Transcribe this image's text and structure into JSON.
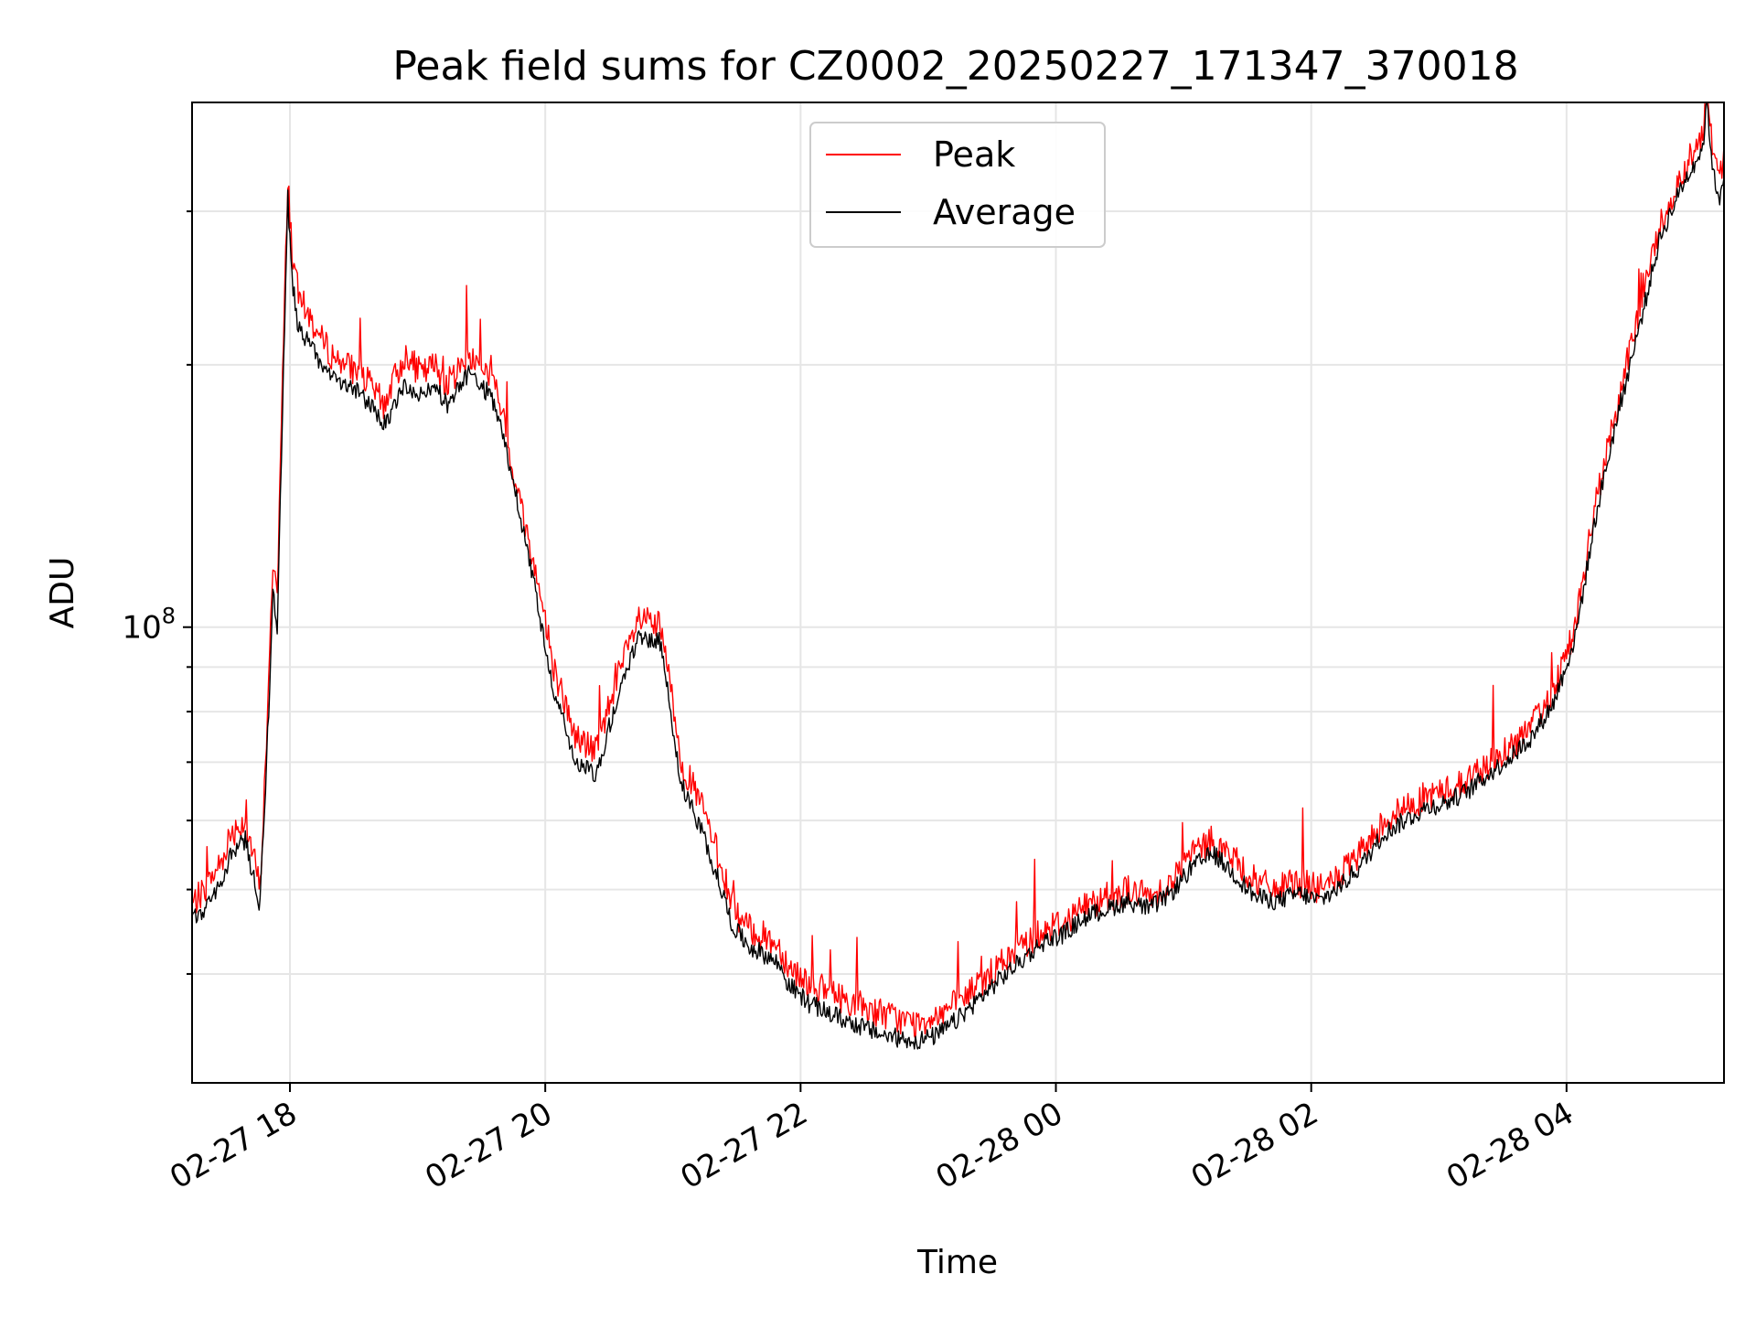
{
  "chart_data": {
    "type": "line",
    "title": "Peak field sums for CZ0002_20250227_171347_370018",
    "xlabel": "Time",
    "ylabel": "ADU",
    "yscale": "log",
    "ylim": [
      30000000,
      400000000
    ],
    "xlim": [
      "02-27 17:14",
      "02-28 05:14"
    ],
    "x_ticks": [
      "02-27 18",
      "02-27 20",
      "02-27 22",
      "02-28 00",
      "02-28 02",
      "02-28 04"
    ],
    "y_major_tick_label": "10^8",
    "y_major_tick_value": 100000000,
    "y_minor_ticks": [
      40000000,
      50000000,
      60000000,
      70000000,
      80000000,
      90000000,
      200000000,
      300000000
    ],
    "grid": true,
    "legend_position": "upper-center",
    "x_unit": "minutes since 02-27 17:14",
    "series": [
      {
        "name": "Peak",
        "color": "#ff0000",
        "x": [
          0,
          6,
          10,
          14,
          18,
          25,
          30,
          32,
          36,
          38,
          40,
          45,
          47,
          50,
          56,
          60,
          66,
          72,
          80,
          90,
          100,
          108,
          114,
          120,
          130,
          140,
          145,
          150,
          160,
          165,
          170,
          180,
          190,
          198,
          210,
          220,
          225,
          230,
          240,
          250,
          252,
          255,
          262,
          270,
          276,
          280,
          290,
          300,
          312,
          325,
          340,
          350,
          360,
          370,
          380,
          390,
          400,
          410,
          420,
          430,
          440,
          450,
          460,
          470,
          480,
          490,
          500,
          510,
          520,
          530,
          540,
          550,
          560,
          570,
          580,
          590,
          600,
          610,
          620,
          630,
          640,
          650,
          660,
          670,
          680,
          690,
          700,
          710,
          712,
          715,
          718,
          720
        ],
        "values": [
          48000000,
          50000000,
          52000000,
          54000000,
          58000000,
          60000000,
          53000000,
          50000000,
          85000000,
          120000000,
          110000000,
          330000000,
          270000000,
          240000000,
          225000000,
          215000000,
          205000000,
          200000000,
          195000000,
          180000000,
          205000000,
          195000000,
          200000000,
          190000000,
          205000000,
          195000000,
          180000000,
          155000000,
          120000000,
          105000000,
          90000000,
          75000000,
          72000000,
          85000000,
          102000000,
          100000000,
          85000000,
          70000000,
          62000000,
          52000000,
          50000000,
          47000000,
          45000000,
          44000000,
          43000000,
          41000000,
          39000000,
          38000000,
          37000000,
          36000000,
          35000000,
          36000000,
          37000000,
          39000000,
          41000000,
          43000000,
          45000000,
          46000000,
          48000000,
          49000000,
          50000000,
          49000000,
          51000000,
          55000000,
          57000000,
          54000000,
          51000000,
          50000000,
          51000000,
          50000000,
          52000000,
          55000000,
          60000000,
          62000000,
          64000000,
          65000000,
          67000000,
          70000000,
          73000000,
          77000000,
          85000000,
          100000000,
          140000000,
          180000000,
          230000000,
          290000000,
          330000000,
          370000000,
          420000000,
          345000000,
          330000000,
          350000000
        ]
      },
      {
        "name": "Average",
        "color": "#000000",
        "x": [
          0,
          6,
          10,
          14,
          18,
          25,
          30,
          32,
          36,
          38,
          40,
          45,
          47,
          50,
          56,
          60,
          66,
          72,
          80,
          90,
          100,
          108,
          114,
          120,
          130,
          140,
          145,
          150,
          160,
          165,
          170,
          180,
          190,
          198,
          210,
          220,
          225,
          230,
          240,
          250,
          252,
          255,
          262,
          270,
          276,
          280,
          290,
          300,
          312,
          325,
          340,
          350,
          360,
          370,
          380,
          390,
          400,
          410,
          420,
          430,
          440,
          450,
          460,
          470,
          480,
          490,
          500,
          510,
          520,
          530,
          540,
          550,
          560,
          570,
          580,
          590,
          600,
          610,
          620,
          630,
          640,
          650,
          660,
          670,
          680,
          690,
          700,
          710,
          712,
          715,
          718,
          720
        ],
        "values": [
          46000000,
          47500000,
          49000000,
          51000000,
          55000000,
          57000000,
          50000000,
          48000000,
          80000000,
          110000000,
          100000000,
          310000000,
          250000000,
          220000000,
          210000000,
          200000000,
          195000000,
          190000000,
          185000000,
          170000000,
          190000000,
          185000000,
          188000000,
          180000000,
          195000000,
          185000000,
          170000000,
          150000000,
          115000000,
          98000000,
          85000000,
          70000000,
          68000000,
          80000000,
          98000000,
          96000000,
          80000000,
          66000000,
          58000000,
          49000000,
          47000000,
          45000000,
          43000000,
          42000000,
          41000000,
          39000000,
          37000000,
          36000000,
          35000000,
          34000000,
          33500000,
          34000000,
          35500000,
          37500000,
          39500000,
          41500000,
          43500000,
          44500000,
          46500000,
          47500000,
          48500000,
          47500000,
          49500000,
          53000000,
          55000000,
          52000000,
          49000000,
          48500000,
          49500000,
          48500000,
          50500000,
          53500000,
          58000000,
          60000000,
          62000000,
          63000000,
          65000000,
          68000000,
          71000000,
          75000000,
          82000000,
          97000000,
          135000000,
          175000000,
          220000000,
          280000000,
          320000000,
          355000000,
          400000000,
          330000000,
          310000000,
          335000000
        ]
      }
    ]
  }
}
